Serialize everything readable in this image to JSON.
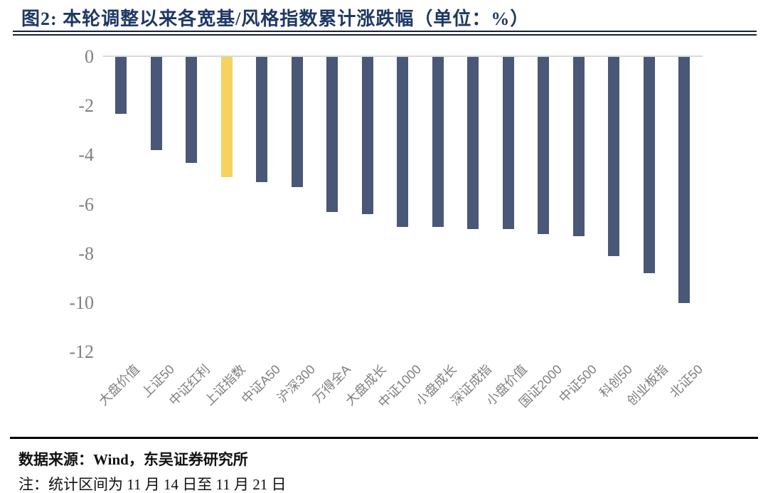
{
  "header": {
    "title": "图2:  本轮调整以来各宽基/风格指数累计涨跌幅（单位：%）"
  },
  "chart_data": {
    "type": "bar",
    "title": "本轮调整以来各宽基/风格指数累计涨跌幅",
    "unit": "%",
    "categories": [
      "大盘价值",
      "上证50",
      "中证红利",
      "上证指数",
      "中证A50",
      "沪深300",
      "万得全A",
      "大盘成长",
      "中证1000",
      "小盘成长",
      "深证成指",
      "小盘价值",
      "国证2000",
      "中证500",
      "科创50",
      "创业板指",
      "北证50"
    ],
    "values": [
      -2.3,
      -3.8,
      -4.3,
      -4.9,
      -5.1,
      -5.3,
      -6.3,
      -6.4,
      -6.9,
      -6.9,
      -7.0,
      -7.0,
      -7.2,
      -7.3,
      -8.1,
      -8.8,
      -10.0
    ],
    "highlight_category": "上证指数",
    "highlight_index": 3,
    "ytick_labels": [
      "0",
      "-2",
      "-4",
      "-6",
      "-8",
      "-10",
      "-12"
    ],
    "yticks": [
      0,
      -2,
      -4,
      -6,
      -8,
      -10,
      -12
    ],
    "ylim": [
      -12,
      0
    ],
    "grid": false,
    "legend": "none",
    "colors": {
      "bar": "#495877",
      "highlight": "#F6D35E",
      "axis_line": "#d9d9d9",
      "tick_text": "#7f7f7f",
      "title_text": "#1F3864"
    }
  },
  "footer": {
    "source": "数据来源：Wind，东吴证券研究所",
    "note": "注：统计区间为 11 月 14 日至 11 月 21 日"
  }
}
